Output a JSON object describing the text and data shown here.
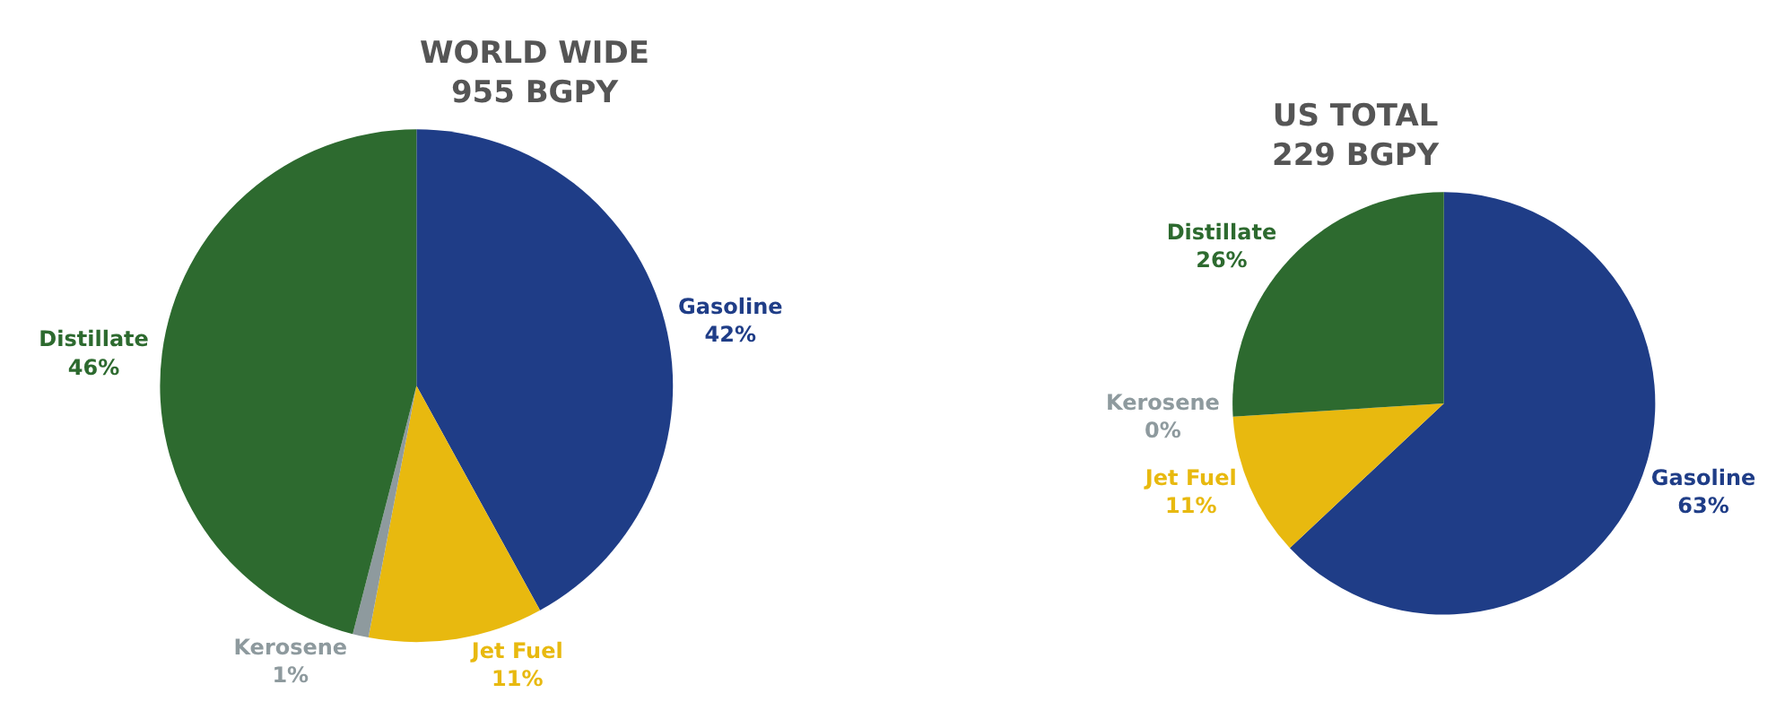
{
  "chart_data": [
    {
      "type": "pie",
      "title": "WORLD WIDE\n955 BGPY",
      "categories": [
        "Gasoline",
        "Jet Fuel",
        "Kerosene",
        "Distillate"
      ],
      "values": [
        42,
        11,
        1,
        46
      ],
      "value_labels": [
        "42%",
        "11%",
        "1%",
        "46%"
      ],
      "colors": [
        "#1f3d87",
        "#e8b90f",
        "#8e9a9e",
        "#2d6a2f"
      ],
      "legend": false
    },
    {
      "type": "pie",
      "title": "US TOTAL\n229 BGPY",
      "categories": [
        "Gasoline",
        "Jet Fuel",
        "Kerosene",
        "Distillate"
      ],
      "values": [
        63,
        11,
        0,
        26
      ],
      "value_labels": [
        "63%",
        "11%",
        "0%",
        "26%"
      ],
      "colors": [
        "#1f3d87",
        "#e8b90f",
        "#8e9a9e",
        "#2d6a2f"
      ],
      "legend": false
    }
  ]
}
